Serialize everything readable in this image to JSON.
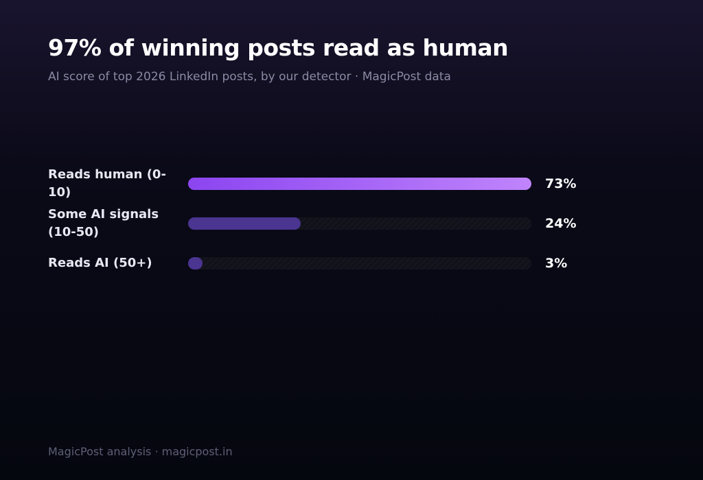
{
  "chart_data": {
    "type": "bar",
    "orientation": "horizontal",
    "title": "97% of winning posts read as human",
    "subtitle": "AI score of top 2026 LinkedIn posts, by our detector · MagicPost data",
    "categories": [
      "Reads human (0-10)",
      "Some AI signals (10-50)",
      "Reads AI (50+)"
    ],
    "values": [
      73,
      24,
      3
    ],
    "value_labels": [
      "73%",
      "24%",
      "3%"
    ],
    "colors": [
      "#8b45f0",
      "#4a3590",
      "#4a3590"
    ],
    "footer": "MagicPost analysis · magicpost.in"
  }
}
